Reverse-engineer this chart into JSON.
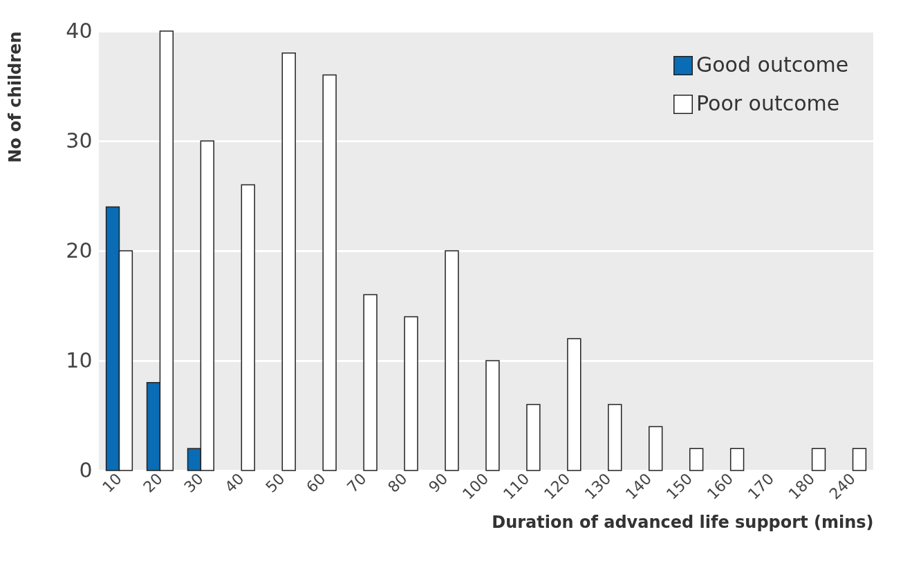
{
  "chart_data": {
    "type": "bar",
    "xlabel": "Duration of advanced life support (mins)",
    "ylabel": "No of children",
    "categories": [
      "10",
      "20",
      "30",
      "40",
      "50",
      "60",
      "70",
      "80",
      "90",
      "100",
      "110",
      "120",
      "130",
      "140",
      "150",
      "160",
      "170",
      "180",
      "240"
    ],
    "series": [
      {
        "name": "Good outcome",
        "color": "#0a6cb4",
        "values": [
          24,
          8,
          2,
          null,
          null,
          null,
          null,
          null,
          null,
          null,
          null,
          null,
          null,
          null,
          null,
          null,
          null,
          null,
          null
        ]
      },
      {
        "name": "Poor outcome",
        "color": "#ffffff",
        "values": [
          20,
          40,
          30,
          26,
          38,
          36,
          16,
          14,
          20,
          10,
          6,
          12,
          6,
          4,
          2,
          2,
          null,
          2,
          2
        ]
      }
    ],
    "ylim": [
      0,
      40
    ],
    "yticks": [
      0,
      10,
      20,
      30,
      40
    ],
    "grid": "y",
    "legend": "top right"
  }
}
